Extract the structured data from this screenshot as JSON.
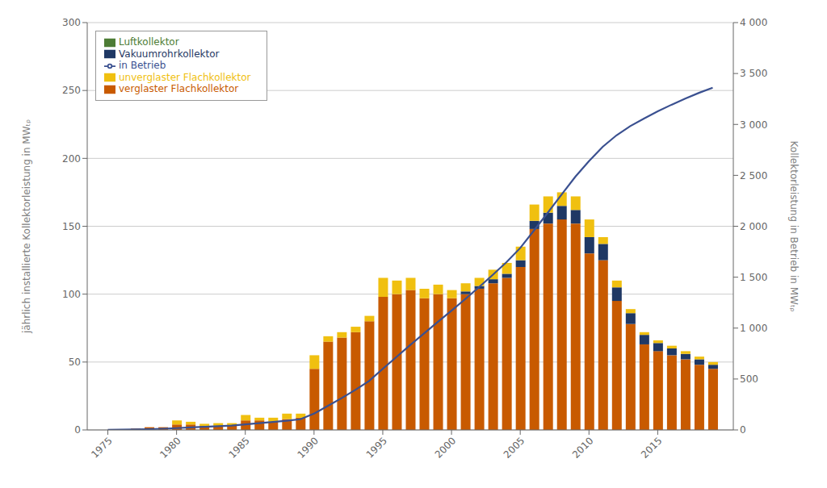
{
  "chart_data": {
    "type": "bar",
    "stacked": true,
    "x": [
      1975,
      1976,
      1977,
      1978,
      1979,
      1980,
      1981,
      1982,
      1983,
      1984,
      1985,
      1986,
      1987,
      1988,
      1989,
      1990,
      1991,
      1992,
      1993,
      1994,
      1995,
      1996,
      1997,
      1998,
      1999,
      2000,
      2001,
      2002,
      2003,
      2004,
      2005,
      2006,
      2007,
      2008,
      2009,
      2010,
      2011,
      2012,
      2013,
      2014,
      2015,
      2016,
      2017,
      2018,
      2019
    ],
    "xlim": [
      1973.5,
      2020.5
    ],
    "xticks": [
      1975,
      1980,
      1985,
      1990,
      1995,
      2000,
      2005,
      2010,
      2015
    ],
    "ylim": [
      0,
      300
    ],
    "yticks": [
      0,
      50,
      100,
      150,
      200,
      250,
      300
    ],
    "y2lim": [
      0,
      4000
    ],
    "y2ticks": [
      0,
      500,
      {
        "value": 1000,
        "label": "1 000"
      },
      {
        "value": 1500,
        "label": "1 500"
      },
      {
        "value": 2000,
        "label": "2 000"
      },
      {
        "value": 2500,
        "label": "2 500"
      },
      {
        "value": 3000,
        "label": "3 000"
      },
      {
        "value": 3500,
        "label": "3 500"
      },
      {
        "value": 4000,
        "label": "4 000"
      }
    ],
    "ylabel": "jährlich installierte Kollektorleistung in MWₜᵨ",
    "y2label": "Kollektorleistung in Betrieb in MWₜᵨ",
    "grid": true,
    "legend": "upper left",
    "series": [
      {
        "name": "Luftkollektor",
        "color": "#4d7c35",
        "values": [
          0,
          0,
          0,
          0,
          0,
          0,
          0,
          0,
          0,
          0,
          0,
          0,
          0,
          0,
          0,
          0,
          0,
          0,
          0,
          0,
          0,
          0,
          0,
          0,
          0,
          0,
          0,
          0,
          0,
          0,
          0,
          0,
          0,
          0,
          0,
          0,
          0,
          0,
          0,
          0,
          0,
          0,
          0,
          0,
          0
        ]
      },
      {
        "name": "verglaster Flachkollektor",
        "color": "#c85a00",
        "values": [
          0,
          0,
          1,
          2,
          2,
          4,
          4,
          3,
          3,
          3,
          7,
          7,
          6,
          8,
          9,
          45,
          65,
          68,
          72,
          80,
          98,
          100,
          103,
          97,
          100,
          97,
          100,
          104,
          108,
          112,
          120,
          148,
          152,
          155,
          152,
          130,
          125,
          95,
          78,
          63,
          58,
          55,
          52,
          48,
          45
        ]
      },
      {
        "name": "Vakuumrohrkollektor",
        "color": "#1f3864",
        "values": [
          0,
          0,
          0,
          0,
          0,
          0,
          0,
          0,
          0,
          0,
          0,
          0,
          0,
          0,
          0,
          0,
          0,
          0,
          0,
          0,
          0,
          0,
          0,
          0,
          0,
          0,
          2,
          2,
          3,
          3,
          5,
          6,
          8,
          10,
          10,
          12,
          12,
          10,
          8,
          7,
          6,
          5,
          4,
          4,
          3
        ]
      },
      {
        "name": "unverglaster Flachkollektor",
        "color": "#f0c010",
        "values": [
          0,
          0,
          0,
          0,
          0,
          3,
          2,
          1.5,
          2,
          2,
          4,
          2,
          3,
          4,
          3,
          10,
          4,
          4,
          4,
          4,
          14,
          10,
          9,
          7,
          7,
          6,
          6,
          6,
          7,
          8,
          10,
          12,
          12,
          10,
          10,
          13,
          5,
          5,
          3,
          2,
          2,
          2,
          2,
          2,
          2
        ]
      },
      {
        "name": "in Betrieb",
        "type": "line",
        "axis": "y2",
        "color": "#3a5090",
        "values": [
          2,
          3,
          5,
          8,
          12,
          18,
          25,
          30,
          36,
          43,
          55,
          67,
          78,
          90,
          105,
          160,
          235,
          312,
          393,
          480,
          600,
          717,
          835,
          947,
          1060,
          1172,
          1285,
          1402,
          1523,
          1648,
          1787,
          1958,
          2133,
          2310,
          2485,
          2640,
          2780,
          2893,
          2983,
          3058,
          3128,
          3193,
          3253,
          3310,
          3360
        ]
      }
    ]
  }
}
